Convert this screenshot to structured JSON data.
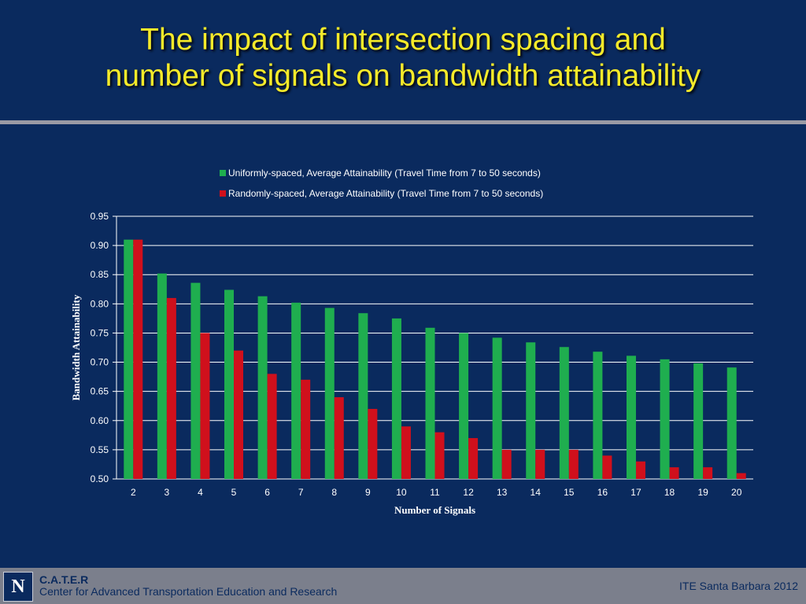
{
  "slide": {
    "title_line1": "The impact of intersection spacing and",
    "title_line2": "number of signals on bandwidth attainability"
  },
  "footer": {
    "logo_text": "N",
    "org_short": "C.A.T.E.R",
    "org_long": "Center for Advanced Transportation Education and Research",
    "event": "ITE Santa Barbara 2012"
  },
  "colors": {
    "background": "#0a2a5e",
    "title": "#f5ea2a",
    "series_uniform": "#1fae4f",
    "series_random": "#d0101c"
  },
  "chart_data": {
    "type": "bar",
    "xlabel": "Number of Signals",
    "ylabel": "Bandwidth Attainability",
    "ylim": [
      0.5,
      0.95
    ],
    "ytick_labels": [
      "0.50",
      "0.55",
      "0.60",
      "0.65",
      "0.70",
      "0.75",
      "0.80",
      "0.85",
      "0.90",
      "0.95"
    ],
    "grid": true,
    "legend_position": "top-center",
    "categories": [
      "2",
      "3",
      "4",
      "5",
      "6",
      "7",
      "8",
      "9",
      "10",
      "11",
      "12",
      "13",
      "14",
      "15",
      "16",
      "17",
      "18",
      "19",
      "20"
    ],
    "series": [
      {
        "name": "Uniformly-spaced, Average Attainability (Travel Time from 7 to 50 seconds)",
        "color": "#1fae4f",
        "values": [
          0.91,
          0.852,
          0.836,
          0.824,
          0.813,
          0.802,
          0.793,
          0.784,
          0.775,
          0.759,
          0.75,
          0.742,
          0.734,
          0.726,
          0.718,
          0.711,
          0.705,
          0.698,
          0.691
        ]
      },
      {
        "name": "Randomly-spaced, Average Attainability (Travel Time from 7 to 50 seconds)",
        "color": "#d0101c",
        "values": [
          0.91,
          0.81,
          0.75,
          0.72,
          0.68,
          0.67,
          0.64,
          0.62,
          0.59,
          0.58,
          0.57,
          0.55,
          0.55,
          0.55,
          0.54,
          0.53,
          0.52,
          0.52,
          0.51
        ]
      }
    ]
  }
}
